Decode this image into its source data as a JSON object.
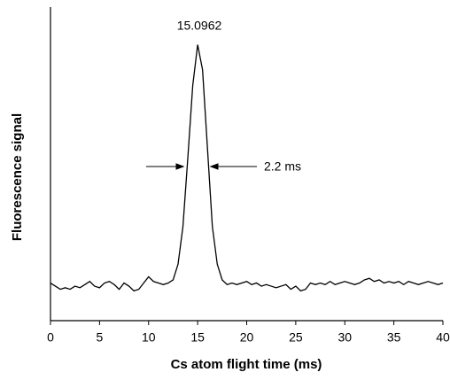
{
  "chart_data": {
    "type": "line",
    "xlabel": "Cs atom flight time (ms)",
    "ylabel": "Fluorescence signal",
    "annotations": [
      "15.0962",
      "2.2 ms"
    ],
    "x": [
      0,
      0.5,
      1,
      1.5,
      2,
      2.5,
      3,
      3.5,
      4,
      4.5,
      5,
      5.5,
      6,
      6.5,
      7,
      7.5,
      8,
      8.5,
      9,
      9.5,
      10,
      10.5,
      11,
      11.5,
      12,
      12.5,
      13,
      13.5,
      14,
      14.5,
      15,
      15.5,
      16,
      16.5,
      17,
      17.5,
      18,
      18.5,
      19,
      19.5,
      20,
      20.5,
      21,
      21.5,
      22,
      22.5,
      23,
      23.5,
      24,
      24.5,
      25,
      25.5,
      26,
      26.5,
      27,
      27.5,
      28,
      28.5,
      29,
      29.5,
      30,
      30.5,
      31,
      31.5,
      32,
      32.5,
      33,
      33.5,
      34,
      34.5,
      35,
      35.5,
      36,
      36.5,
      37,
      37.5,
      38,
      38.5,
      39,
      39.5,
      40
    ],
    "series": [
      {
        "color": "#000000",
        "values": [
          12,
          11,
          10,
          10.5,
          10,
          11,
          10.5,
          11.5,
          12.5,
          11,
          10.5,
          12,
          12.5,
          11.5,
          10,
          12,
          11,
          9.5,
          10,
          12,
          14,
          12.5,
          12,
          11.5,
          12,
          13,
          18,
          30,
          52,
          75,
          88,
          80,
          55,
          30,
          18,
          13,
          11.5,
          12,
          11.5,
          12,
          12.5,
          11.5,
          12,
          11,
          11.5,
          11,
          10.5,
          11,
          11.5,
          10,
          11,
          9.5,
          10,
          12,
          11.5,
          12,
          11.5,
          12.5,
          11.5,
          12,
          12.5,
          12,
          11.5,
          12,
          13,
          13.5,
          12.5,
          13,
          12,
          12.5,
          12,
          12.5,
          11.5,
          12.5,
          12,
          11.5,
          12,
          12.5,
          12,
          11.5,
          12
        ]
      }
    ],
    "xlim": [
      0,
      40
    ],
    "xticks": [
      0,
      5,
      10,
      15,
      20,
      25,
      30,
      35,
      40
    ],
    "ylim": [
      0,
      100
    ]
  }
}
